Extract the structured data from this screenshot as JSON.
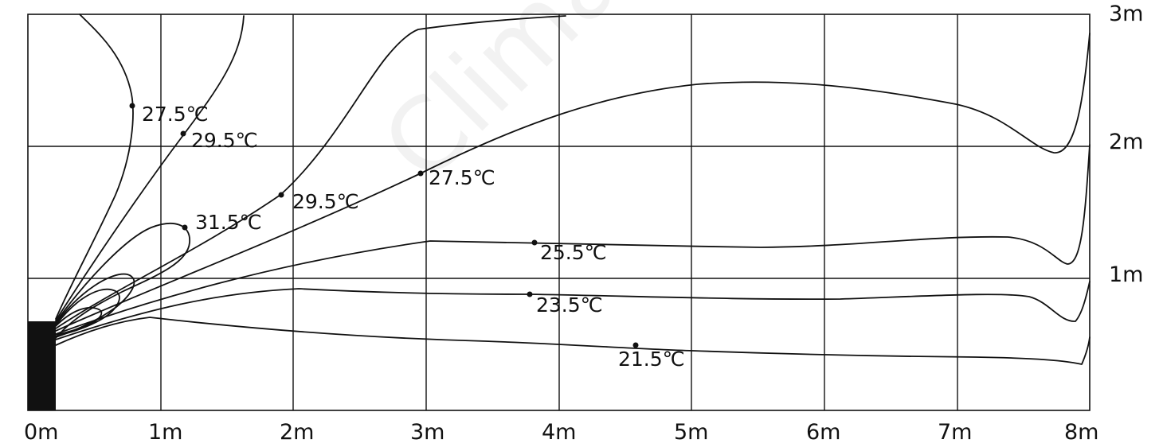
{
  "diagram": {
    "watermark_text": "Clima",
    "distance_labels": [
      "0m",
      "1m",
      "2m",
      "3m",
      "4m",
      "5m",
      "6m",
      "7m",
      "8m"
    ],
    "height_labels": [
      "1m",
      "2m",
      "3m"
    ],
    "temperature_labels": [
      "27.5℃",
      "29.5℃",
      "31.5℃",
      "29.5℃",
      "27.5℃",
      "25.5℃",
      "23.5℃",
      "21.5℃"
    ]
  }
}
